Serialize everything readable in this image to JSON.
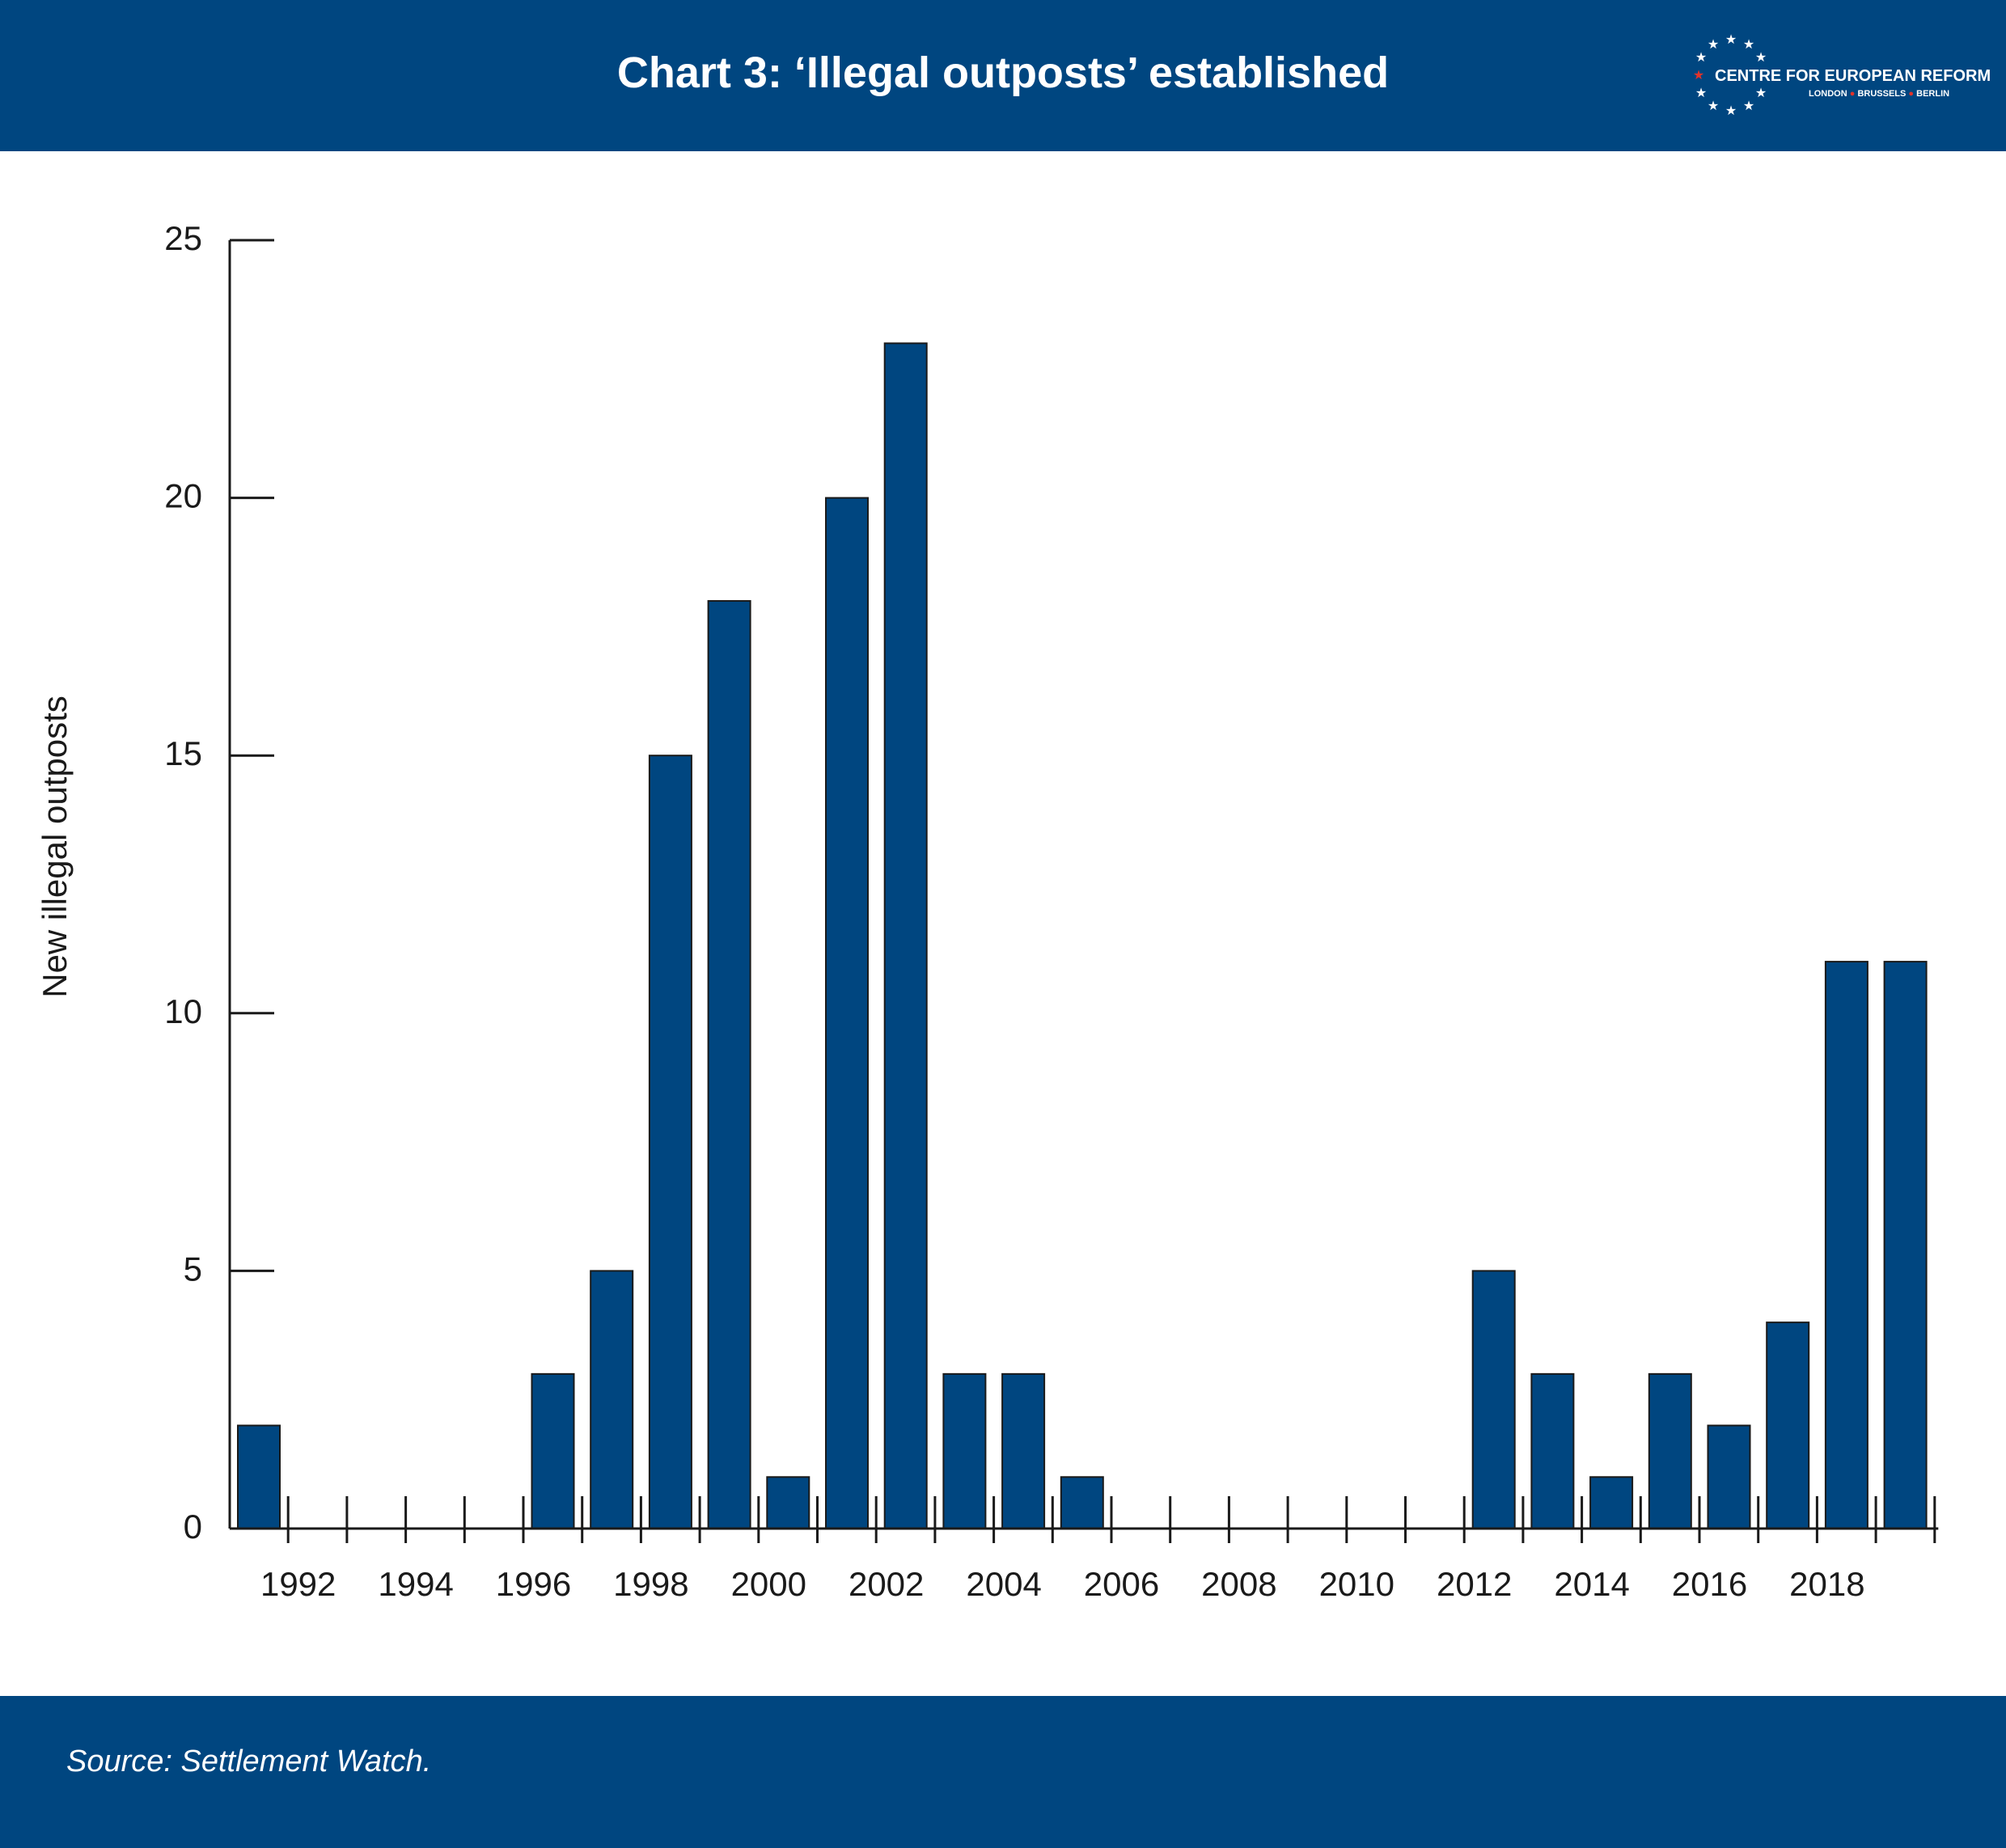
{
  "header": {
    "title": "Chart 3: ‘Illegal outposts’ established",
    "logo_name": "CENTRE FOR EUROPEAN REFORM",
    "logo_cities": [
      "LONDON",
      "BRUSSELS",
      "BERLIN"
    ]
  },
  "footer": {
    "source": "Source: Settlement Watch."
  },
  "colors": {
    "bar": "#004680",
    "banner": "#004680",
    "accent_star": "#e2332a"
  },
  "chart_data": {
    "type": "bar",
    "title": "",
    "xlabel": "",
    "ylabel": "New illegal outposts",
    "ylim": [
      0,
      25
    ],
    "yticks": [
      0,
      5,
      10,
      15,
      20,
      25
    ],
    "x_tick_labels": [
      "1992",
      "1994",
      "1996",
      "1998",
      "2000",
      "2002",
      "2004",
      "2006",
      "2008",
      "2010",
      "2012",
      "2014",
      "2016",
      "2018"
    ],
    "categories": [
      "1991",
      "1992",
      "1993",
      "1994",
      "1995",
      "1996",
      "1997",
      "1998",
      "1999",
      "2000",
      "2001",
      "2002",
      "2003",
      "2004",
      "2005",
      "2006",
      "2007",
      "2008",
      "2009",
      "2010",
      "2011",
      "2012",
      "2013",
      "2014",
      "2015",
      "2016",
      "2017",
      "2018",
      "2019"
    ],
    "values": [
      2,
      0,
      0,
      0,
      0,
      3,
      5,
      15,
      18,
      1,
      20,
      23,
      3,
      3,
      1,
      0,
      0,
      0,
      0,
      0,
      0,
      5,
      3,
      1,
      3,
      2,
      4,
      11,
      11
    ],
    "grid": false,
    "legend": "none"
  }
}
